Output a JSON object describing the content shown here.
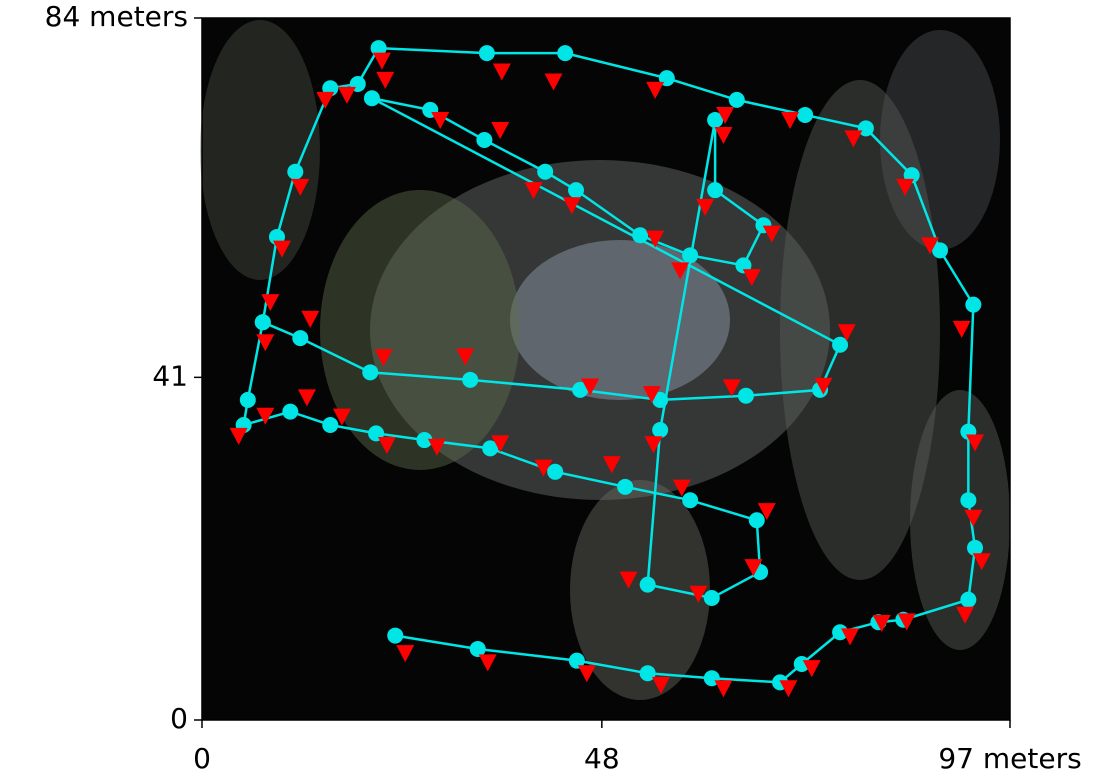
{
  "chart_data": {
    "type": "scatter",
    "xlim": [
      0,
      97
    ],
    "ylim": [
      0,
      84
    ],
    "xticks": [
      0,
      48,
      {
        "value": 97,
        "label": "97 meters"
      }
    ],
    "yticks": [
      0,
      41,
      {
        "value": 84,
        "label": "84 meters"
      }
    ],
    "series": [
      {
        "color": "#00e5e5",
        "marker": "circle",
        "line": true,
        "x": [
          23.2,
          33.1,
          45.0,
          53.5,
          61.2,
          69.4,
          72.0,
          76.6,
          81.2,
          84.2,
          92.0,
          92.8,
          92.0,
          92.0,
          92.6,
          88.6,
          85.2,
          79.7,
          72.4,
          64.2,
          55.8,
          43.6,
          34.2,
          21.2,
          18.7,
          15.4,
          11.2,
          9.0,
          7.3,
          5.5,
          5.0,
          10.6,
          15.4,
          20.9,
          26.7,
          34.6,
          42.4,
          50.8,
          58.6,
          66.6,
          67.0,
          61.2,
          53.5,
          55.0,
          61.6,
          61.6,
          67.4,
          65.0,
          58.6,
          52.6,
          44.9,
          41.2,
          33.9,
          27.4,
          20.4,
          76.6,
          74.2,
          65.3,
          55.0,
          45.4,
          32.2,
          20.2,
          11.8,
          7.3
        ],
        "values": [
          10.1,
          8.5,
          7.1,
          5.6,
          5.0,
          4.5,
          6.7,
          10.5,
          11.7,
          12.0,
          14.4,
          20.6,
          26.3,
          34.5,
          49.7,
          56.2,
          65.2,
          70.8,
          72.4,
          74.2,
          76.8,
          79.8,
          79.8,
          80.4,
          76.1,
          75.6,
          65.6,
          57.8,
          47.6,
          38.3,
          35.3,
          36.9,
          35.3,
          34.3,
          33.5,
          32.5,
          29.7,
          27.9,
          26.3,
          23.9,
          17.7,
          14.6,
          16.2,
          34.7,
          71.8,
          63.4,
          59.2,
          54.4,
          55.6,
          58.0,
          63.4,
          65.6,
          69.4,
          73.0,
          74.4,
          44.9,
          39.5,
          38.8,
          38.3,
          39.5,
          40.7,
          41.6,
          45.7,
          47.6
        ]
      },
      {
        "color": "#ff0000",
        "marker": "triangle-down",
        "line": false,
        "x": [
          24.4,
          34.3,
          46.2,
          55.1,
          62.6,
          70.4,
          73.2,
          77.8,
          81.6,
          84.6,
          91.6,
          93.6,
          92.6,
          92.8,
          91.2,
          87.4,
          84.4,
          78.2,
          70.6,
          62.8,
          54.4,
          42.2,
          36.0,
          21.6,
          17.4,
          14.8,
          11.8,
          9.6,
          8.2,
          7.6,
          4.4,
          12.6,
          16.8,
          22.2,
          28.2,
          35.8,
          41.0,
          49.2,
          57.6,
          67.8,
          66.2,
          59.6,
          51.2,
          54.2,
          62.6,
          60.4,
          68.4,
          66.0,
          57.4,
          54.4,
          44.4,
          39.8,
          35.8,
          28.6,
          22.0,
          77.4,
          74.6,
          63.6,
          54.0,
          46.6,
          31.6,
          21.8,
          13.0,
          7.6
        ],
        "values": [
          8.0,
          6.9,
          5.6,
          4.2,
          3.8,
          3.8,
          6.2,
          10.0,
          11.6,
          11.8,
          12.6,
          19.0,
          24.2,
          33.2,
          46.8,
          56.8,
          63.8,
          69.6,
          71.8,
          72.4,
          75.4,
          76.4,
          77.6,
          78.9,
          74.8,
          74.2,
          63.8,
          56.4,
          50.0,
          36.4,
          34.0,
          38.6,
          36.3,
          32.9,
          32.7,
          33.1,
          30.2,
          30.6,
          27.8,
          25.0,
          18.3,
          15.1,
          16.8,
          33.0,
          70.0,
          61.4,
          58.2,
          53.0,
          53.8,
          57.6,
          61.6,
          63.4,
          70.6,
          71.8,
          76.6,
          46.4,
          40.0,
          39.8,
          39.0,
          39.9,
          43.5,
          43.4,
          48.0,
          45.2
        ]
      }
    ]
  }
}
